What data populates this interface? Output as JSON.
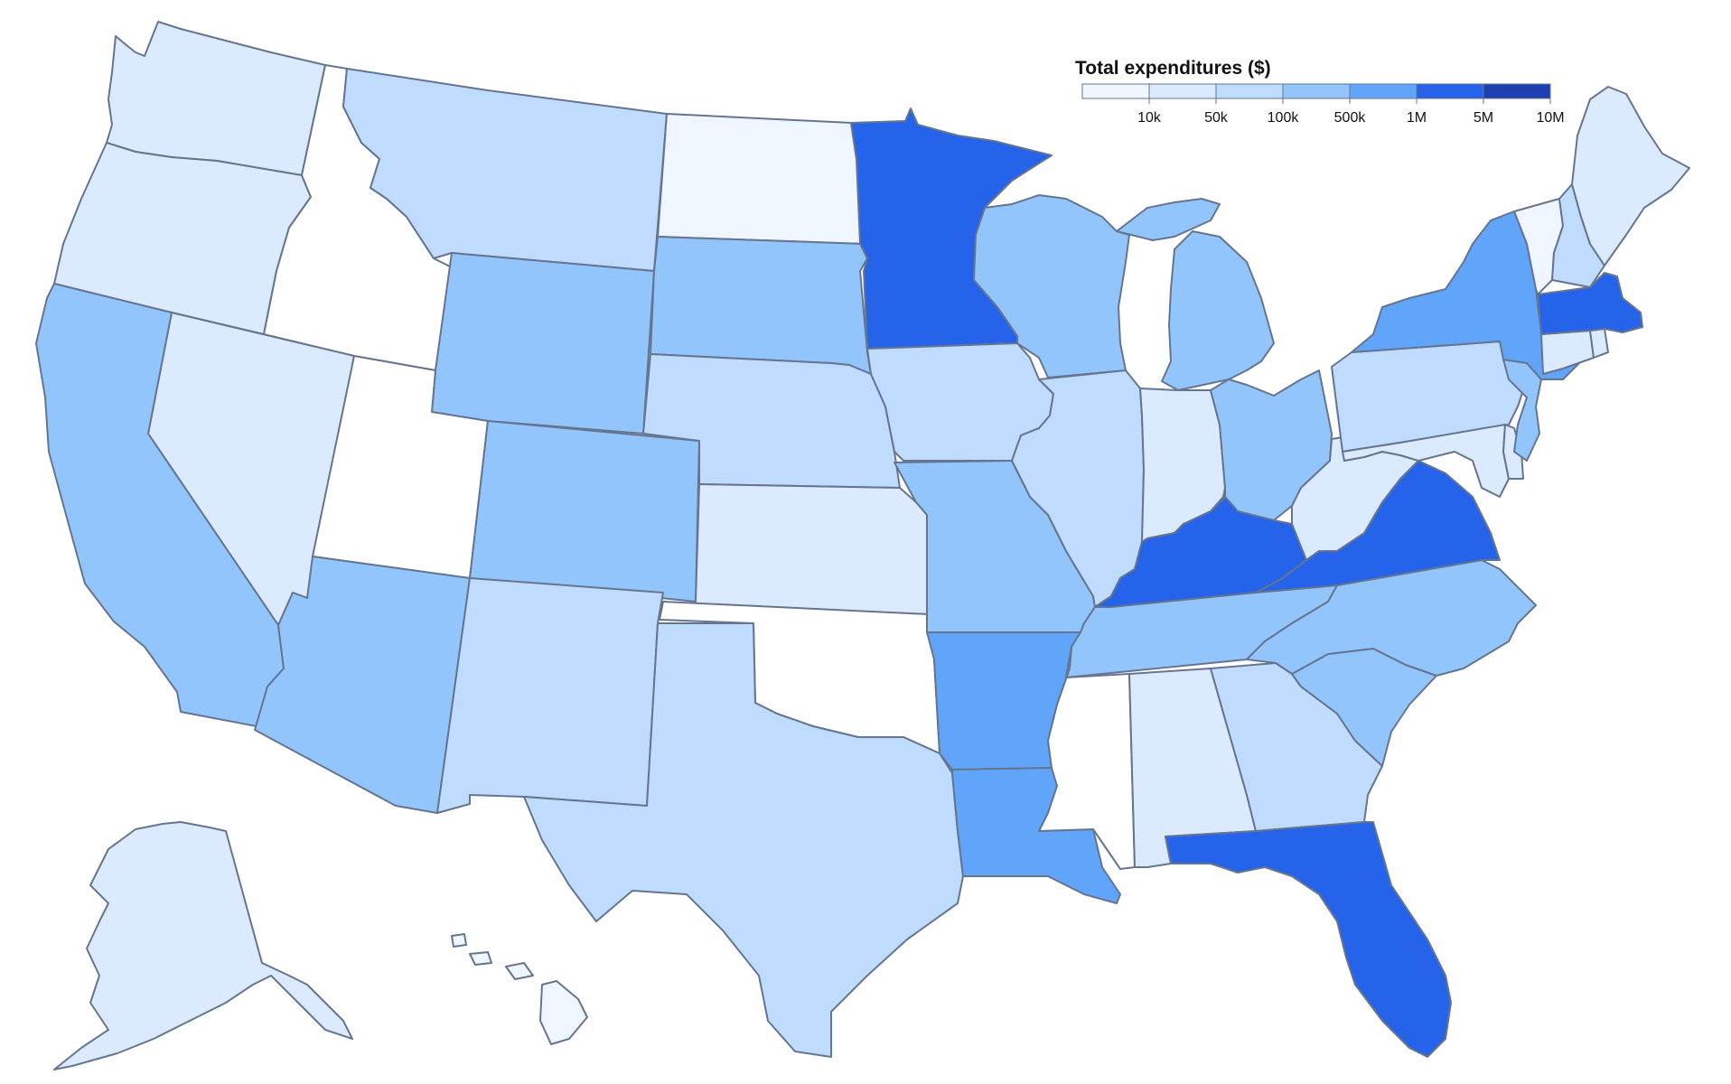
{
  "legend": {
    "title": "Total expenditures ($)",
    "ticks": [
      "10k",
      "50k",
      "100k",
      "500k",
      "1M",
      "5M",
      "10M"
    ],
    "colors": [
      "#eff6ff",
      "#dbeafe",
      "#bfdbfe",
      "#93c5fd",
      "#60a5fa",
      "#2563eb",
      "#1e40af"
    ]
  },
  "palette": {
    "no_data": "#ffffff",
    "border": "#66758f"
  },
  "states": [
    {
      "name": "Washington",
      "bin": 1
    },
    {
      "name": "Oregon",
      "bin": 1
    },
    {
      "name": "California",
      "bin": 3
    },
    {
      "name": "Nevada",
      "bin": 1
    },
    {
      "name": "Idaho",
      "bin": -1
    },
    {
      "name": "Montana",
      "bin": 2
    },
    {
      "name": "Wyoming",
      "bin": 3
    },
    {
      "name": "Utah",
      "bin": -1
    },
    {
      "name": "Arizona",
      "bin": 3
    },
    {
      "name": "Colorado",
      "bin": 3
    },
    {
      "name": "New Mexico",
      "bin": 2
    },
    {
      "name": "North Dakota",
      "bin": 0
    },
    {
      "name": "South Dakota",
      "bin": 3
    },
    {
      "name": "Nebraska",
      "bin": 2
    },
    {
      "name": "Kansas",
      "bin": 1
    },
    {
      "name": "Oklahoma",
      "bin": -1
    },
    {
      "name": "Texas",
      "bin": 2
    },
    {
      "name": "Minnesota",
      "bin": 5
    },
    {
      "name": "Iowa",
      "bin": 2
    },
    {
      "name": "Missouri",
      "bin": 3
    },
    {
      "name": "Arkansas",
      "bin": 4
    },
    {
      "name": "Louisiana",
      "bin": 4
    },
    {
      "name": "Wisconsin",
      "bin": 3
    },
    {
      "name": "Illinois",
      "bin": 2
    },
    {
      "name": "Michigan",
      "bin": 3
    },
    {
      "name": "Indiana",
      "bin": 1
    },
    {
      "name": "Ohio",
      "bin": 3
    },
    {
      "name": "Kentucky",
      "bin": 5
    },
    {
      "name": "Tennessee",
      "bin": 3
    },
    {
      "name": "Mississippi",
      "bin": -1
    },
    {
      "name": "Alabama",
      "bin": 1
    },
    {
      "name": "Georgia",
      "bin": 2
    },
    {
      "name": "Florida",
      "bin": 5
    },
    {
      "name": "South Carolina",
      "bin": 3
    },
    {
      "name": "North Carolina",
      "bin": 3
    },
    {
      "name": "Virginia",
      "bin": 5
    },
    {
      "name": "West Virginia",
      "bin": 1
    },
    {
      "name": "Maryland",
      "bin": 1
    },
    {
      "name": "Delaware",
      "bin": 1
    },
    {
      "name": "Pennsylvania",
      "bin": 2
    },
    {
      "name": "New Jersey",
      "bin": 3
    },
    {
      "name": "New York",
      "bin": 4
    },
    {
      "name": "Connecticut",
      "bin": 1
    },
    {
      "name": "Rhode Island",
      "bin": 1
    },
    {
      "name": "Massachusetts",
      "bin": 5
    },
    {
      "name": "Vermont",
      "bin": 0
    },
    {
      "name": "New Hampshire",
      "bin": 2
    },
    {
      "name": "Maine",
      "bin": 1
    },
    {
      "name": "Alaska",
      "bin": 1
    },
    {
      "name": "Hawaii",
      "bin": 0
    }
  ]
}
